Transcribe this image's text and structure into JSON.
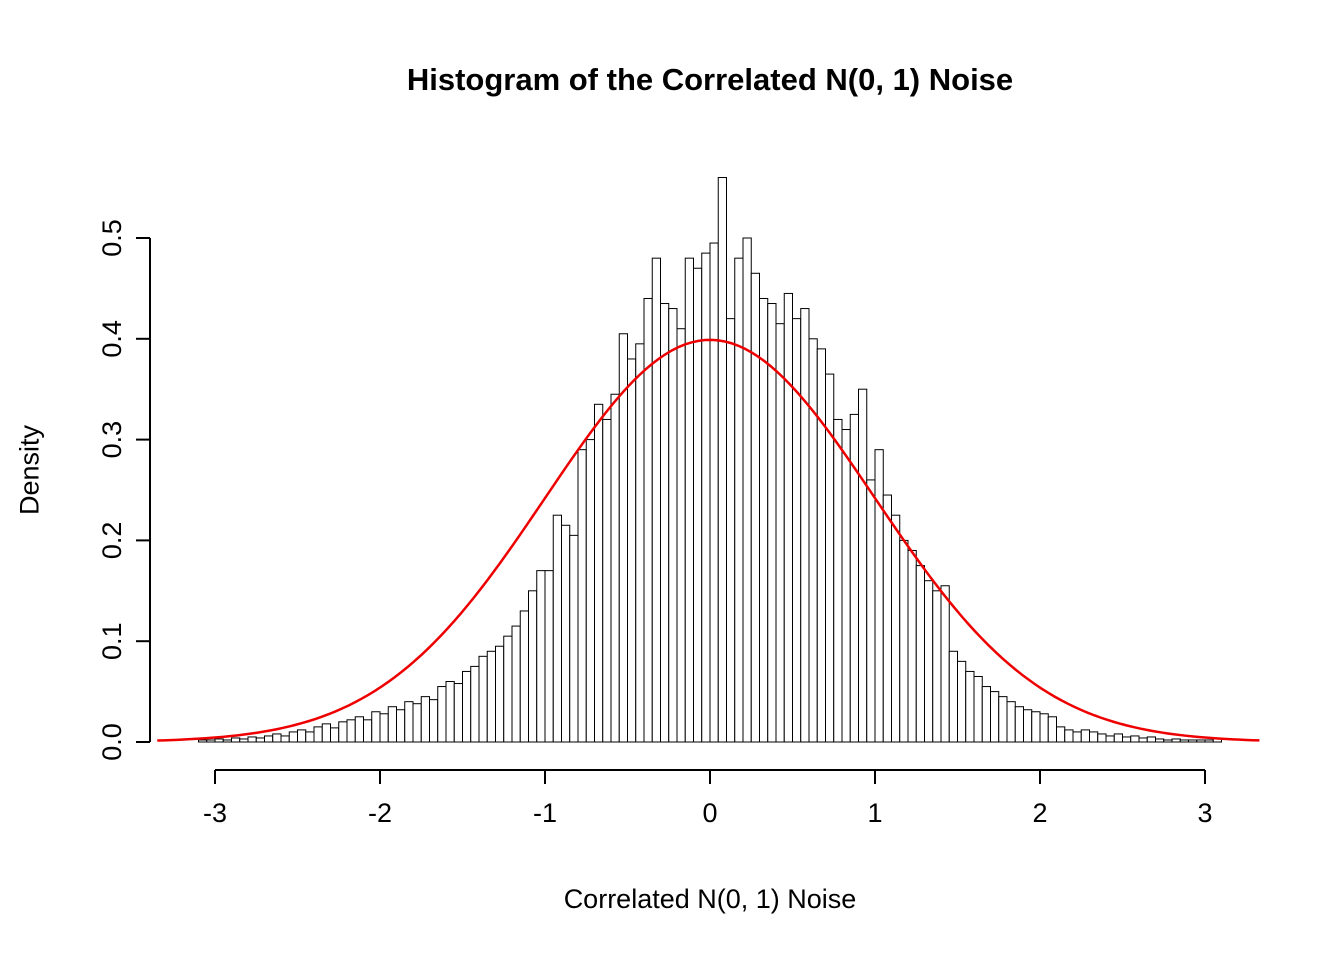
{
  "chart_data": {
    "type": "bar",
    "subtype": "histogram",
    "title": "Histogram of the Correlated N(0, 1) Noise",
    "xlabel": "Correlated N(0, 1) Noise",
    "ylabel": "Density",
    "grid": false,
    "legend": "none",
    "bar_fill": "#ffffff",
    "bar_stroke": "#000000",
    "curve_color": "#ee0000",
    "axis_color": "#000000",
    "bin_start": -3.1,
    "bin_width": 0.05,
    "xlim": [
      -3.35,
      3.35
    ],
    "ylim": [
      0,
      0.56
    ],
    "x_ticks": [
      -3,
      -2,
      -1,
      0,
      1,
      2,
      3
    ],
    "x_tick_labels": [
      "-3",
      "-2",
      "-1",
      "0",
      "1",
      "2",
      "3"
    ],
    "y_ticks": [
      0.0,
      0.1,
      0.2,
      0.3,
      0.4,
      0.5
    ],
    "y_tick_labels": [
      "0.0",
      "0.1",
      "0.2",
      "0.3",
      "0.4",
      "0.5"
    ],
    "overlay_curve": {
      "kind": "normal-density",
      "mean": 0,
      "sd": 1
    },
    "values": [
      0.002,
      0.002,
      0.003,
      0.002,
      0.004,
      0.003,
      0.005,
      0.004,
      0.006,
      0.008,
      0.006,
      0.01,
      0.012,
      0.01,
      0.015,
      0.018,
      0.014,
      0.02,
      0.022,
      0.025,
      0.022,
      0.03,
      0.028,
      0.035,
      0.032,
      0.04,
      0.038,
      0.045,
      0.042,
      0.055,
      0.06,
      0.058,
      0.07,
      0.075,
      0.085,
      0.09,
      0.095,
      0.105,
      0.115,
      0.13,
      0.15,
      0.17,
      0.17,
      0.225,
      0.215,
      0.205,
      0.29,
      0.3,
      0.335,
      0.32,
      0.345,
      0.405,
      0.38,
      0.395,
      0.44,
      0.48,
      0.435,
      0.43,
      0.41,
      0.48,
      0.47,
      0.485,
      0.495,
      0.56,
      0.42,
      0.48,
      0.5,
      0.465,
      0.44,
      0.435,
      0.415,
      0.445,
      0.42,
      0.43,
      0.4,
      0.39,
      0.365,
      0.32,
      0.31,
      0.325,
      0.35,
      0.26,
      0.29,
      0.245,
      0.225,
      0.2,
      0.19,
      0.175,
      0.16,
      0.15,
      0.155,
      0.09,
      0.08,
      0.07,
      0.065,
      0.055,
      0.05,
      0.045,
      0.04,
      0.035,
      0.032,
      0.03,
      0.028,
      0.025,
      0.015,
      0.012,
      0.01,
      0.012,
      0.01,
      0.008,
      0.006,
      0.008,
      0.005,
      0.006,
      0.004,
      0.005,
      0.003,
      0.002,
      0.003,
      0.002,
      0.002,
      0.002,
      0.002,
      0.003
    ]
  }
}
